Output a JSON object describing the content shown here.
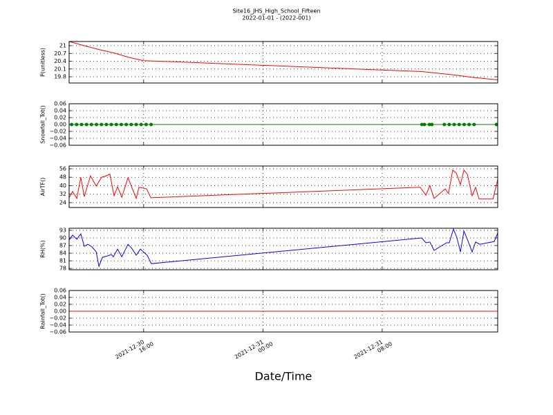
{
  "chart_data": [
    {
      "type": "line",
      "title": "Site16_JHS_High_School_Fifteen",
      "subtitle": "2022-01-01 - (2022-001)",
      "ylabel": "P(unitless)",
      "color": "#ff0000",
      "grid": true,
      "ylim": [
        19.56,
        21.16
      ],
      "yticks": [
        19.8,
        20.1,
        20.4,
        20.7,
        21.0
      ],
      "x": [
        "2021-12-30 11:00",
        "2021-12-30 12:00",
        "2021-12-30 13:00",
        "2021-12-30 14:00",
        "2021-12-30 15:00",
        "2021-12-30 16:00",
        "2021-12-30 18:00",
        "2021-12-31 10:40",
        "2021-12-31 12:00",
        "2021-12-31 13:00",
        "2021-12-31 14:00",
        "2021-12-31 15:45"
      ],
      "values": [
        21.16,
        21.0,
        20.85,
        20.72,
        20.55,
        20.42,
        20.38,
        20.0,
        19.92,
        19.86,
        19.78,
        19.68
      ]
    },
    {
      "type": "line-marker",
      "ylabel": "Snowfall_Tot()",
      "color": "#008000",
      "grid": true,
      "ylim": [
        -0.06,
        0.06
      ],
      "yticks": [
        {
          "value": -0.06,
          "label": "−0.06"
        },
        {
          "value": -0.04,
          "label": "−0.04"
        },
        {
          "value": -0.02,
          "label": "−0.02"
        },
        {
          "value": 0,
          "label": "0.00"
        },
        {
          "value": 0.02,
          "label": "0.02"
        },
        {
          "value": 0.04,
          "label": "0.04"
        },
        {
          "value": 0.06,
          "label": "0.06"
        }
      ],
      "x": [
        "2021-12-30 11:10",
        "2021-12-30 11:30",
        "2021-12-30 11:50",
        "2021-12-30 12:10",
        "2021-12-30 12:30",
        "2021-12-30 12:50",
        "2021-12-30 13:10",
        "2021-12-30 13:30",
        "2021-12-30 13:50",
        "2021-12-30 14:10",
        "2021-12-30 14:30",
        "2021-12-30 14:50",
        "2021-12-30 15:10",
        "2021-12-30 15:30",
        "2021-12-30 15:50",
        "2021-12-30 16:10",
        "2021-12-30 16:30",
        "2021-12-31 10:40",
        "2021-12-31 10:50",
        "2021-12-31 11:10",
        "2021-12-31 11:20",
        "2021-12-31 12:10",
        "2021-12-31 12:30",
        "2021-12-31 12:50",
        "2021-12-31 13:10",
        "2021-12-31 13:30",
        "2021-12-31 13:50",
        "2021-12-31 14:10",
        "2021-12-31 15:40"
      ],
      "values": [
        0,
        0,
        0,
        0,
        0,
        0,
        0,
        0,
        0,
        0,
        0,
        0,
        0,
        0,
        0,
        0,
        0,
        0,
        0,
        0,
        0,
        0,
        0,
        0,
        0,
        0,
        0,
        0,
        0
      ]
    },
    {
      "type": "line",
      "ylabel": "AirTF()",
      "color": "#ff0000",
      "grid": true,
      "ylim": [
        19.4,
        58.6
      ],
      "yticks": [
        24,
        32,
        40,
        48,
        56
      ],
      "x": [
        "2021-12-30 11:00",
        "2021-12-30 11:14",
        "2021-12-30 11:31",
        "2021-12-30 11:47",
        "2021-12-30 12:01",
        "2021-12-30 12:26",
        "2021-12-30 12:49",
        "2021-12-30 13:11",
        "2021-12-30 13:30",
        "2021-12-30 13:44",
        "2021-12-30 14:01",
        "2021-12-30 14:15",
        "2021-12-30 14:32",
        "2021-12-30 14:57",
        "2021-12-30 15:30",
        "2021-12-30 15:41",
        "2021-12-30 16:12",
        "2021-12-30 16:29",
        "2021-12-31 10:33",
        "2021-12-31 10:56",
        "2021-12-31 11:12",
        "2021-12-31 11:29",
        "2021-12-31 12:14",
        "2021-12-31 12:27",
        "2021-12-31 12:44",
        "2021-12-31 12:58",
        "2021-12-31 13:15",
        "2021-12-31 13:29",
        "2021-12-31 13:43",
        "2021-12-31 14:02",
        "2021-12-31 14:16",
        "2021-12-31 14:30",
        "2021-12-31 15:26",
        "2021-12-31 15:45"
      ],
      "values": [
        28.6,
        34.5,
        28,
        48,
        29.7,
        49.3,
        39.7,
        48,
        49.3,
        51,
        30.4,
        39,
        29,
        47.5,
        28,
        38.5,
        37,
        28.6,
        38.5,
        31,
        40,
        28,
        37,
        32.5,
        54.7,
        52,
        41,
        54.7,
        50.8,
        30.4,
        38.5,
        27.4,
        27.4,
        45.7
      ]
    },
    {
      "type": "line",
      "ylabel": "RH(%)",
      "color": "#0000ff",
      "grid": true,
      "ylim": [
        77.5,
        93.8
      ],
      "yticks": [
        78,
        81,
        84,
        87,
        90,
        93
      ],
      "x": [
        "2021-12-30 11:00",
        "2021-12-30 11:14",
        "2021-12-30 11:31",
        "2021-12-30 11:47",
        "2021-12-30 12:01",
        "2021-12-30 12:15",
        "2021-12-30 12:32",
        "2021-12-30 12:49",
        "2021-12-30 13:00",
        "2021-12-30 13:14",
        "2021-12-30 13:33",
        "2021-12-30 13:50",
        "2021-12-30 13:58",
        "2021-12-30 14:15",
        "2021-12-30 14:32",
        "2021-12-30 14:57",
        "2021-12-30 15:13",
        "2021-12-30 15:30",
        "2021-12-30 15:47",
        "2021-12-30 16:14",
        "2021-12-30 16:31",
        "2021-12-31 10:39",
        "2021-12-31 10:56",
        "2021-12-31 11:12",
        "2021-12-31 11:29",
        "2021-12-31 12:19",
        "2021-12-31 12:30",
        "2021-12-31 12:47",
        "2021-12-31 13:01",
        "2021-12-31 13:15",
        "2021-12-31 13:29",
        "2021-12-31 13:45",
        "2021-12-31 14:02",
        "2021-12-31 14:16",
        "2021-12-31 14:33",
        "2021-12-31 15:31",
        "2021-12-31 15:45"
      ],
      "values": [
        89.2,
        91.1,
        89.5,
        91.6,
        86.7,
        87.5,
        86.5,
        84.5,
        78.8,
        82.4,
        82.9,
        83.5,
        82.6,
        85.6,
        82.6,
        87.5,
        85.8,
        83.2,
        85.6,
        83.2,
        79.9,
        90,
        88.1,
        88.4,
        85.1,
        88.1,
        88.1,
        93.5,
        90,
        84.5,
        92.7,
        88.9,
        84.5,
        88.4,
        87.5,
        88.6,
        91.9
      ]
    },
    {
      "type": "line",
      "ylabel": "Rainfall_Tot()",
      "color": "#ff0000",
      "grid": true,
      "xlabel": "Date/Time",
      "ylim": [
        -0.06,
        0.06
      ],
      "yticks": [
        {
          "value": -0.06,
          "label": "−0.06"
        },
        {
          "value": -0.04,
          "label": "−0.04"
        },
        {
          "value": -0.02,
          "label": "−0.02"
        },
        {
          "value": 0,
          "label": "0.00"
        },
        {
          "value": 0.02,
          "label": "0.02"
        },
        {
          "value": 0.04,
          "label": "0.04"
        },
        {
          "value": 0.06,
          "label": "0.06"
        }
      ],
      "xlim": [
        "2021-12-30 11:00",
        "2021-12-31 15:45"
      ],
      "xticks": [
        "2021-12-30 16:00",
        "2021-12-31 00:00",
        "2021-12-31 08:00"
      ],
      "x": [
        "2021-12-30 11:00",
        "2021-12-31 15:45"
      ],
      "values": [
        0,
        0
      ]
    }
  ]
}
